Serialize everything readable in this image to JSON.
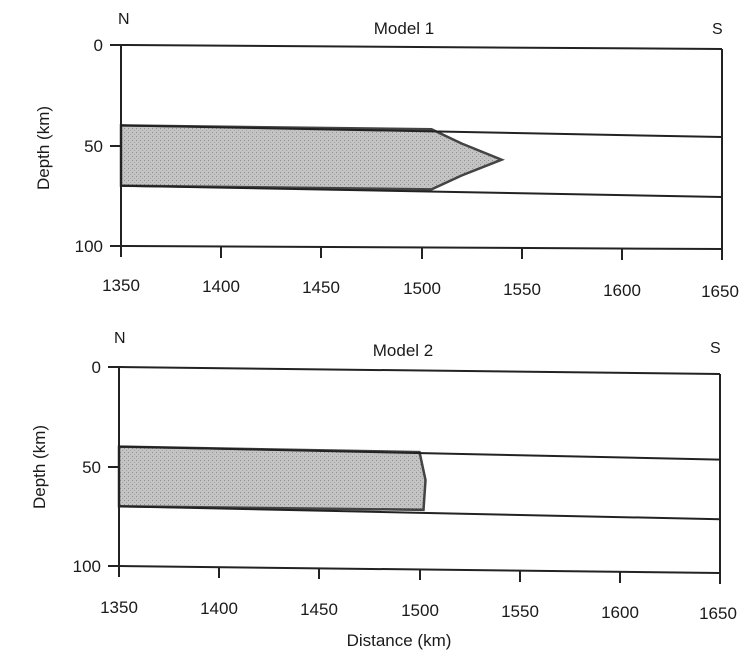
{
  "panels": [
    {
      "title": "Model 1",
      "left_label": "N",
      "right_label": "S",
      "ylabel": "Depth (km)",
      "xlabel": "",
      "x_ticks": [
        "1350",
        "1400",
        "1450",
        "1500",
        "1550",
        "1600",
        "1650"
      ],
      "y_ticks": [
        "0",
        "50",
        "100"
      ]
    },
    {
      "title": "Model 2",
      "left_label": "N",
      "right_label": "S",
      "ylabel": "Depth (km)",
      "xlabel": "Distance (km)",
      "x_ticks": [
        "1350",
        "1400",
        "1450",
        "1500",
        "1550",
        "1600",
        "1650"
      ],
      "y_ticks": [
        "0",
        "50",
        "100"
      ]
    }
  ],
  "models": [
    {
      "x_range_km": [
        1350,
        1650
      ],
      "depth_range_km": [
        0,
        100
      ],
      "upper_boundary_km": [
        [
          1350,
          40
        ],
        [
          1650,
          44
        ]
      ],
      "lower_boundary_km": [
        [
          1350,
          70
        ],
        [
          1650,
          74
        ]
      ],
      "shaded_body_km": [
        [
          1350,
          40
        ],
        [
          1505,
          41
        ],
        [
          1520,
          48
        ],
        [
          1540,
          56
        ],
        [
          1520,
          64
        ],
        [
          1505,
          71
        ],
        [
          1350,
          70
        ]
      ],
      "fill_color": "#bdbdbd"
    },
    {
      "x_range_km": [
        1350,
        1650
      ],
      "depth_range_km": [
        0,
        100
      ],
      "upper_boundary_km": [
        [
          1350,
          40
        ],
        [
          1650,
          43
        ]
      ],
      "lower_boundary_km": [
        [
          1350,
          70
        ],
        [
          1650,
          73
        ]
      ],
      "shaded_body_km": [
        [
          1350,
          40
        ],
        [
          1500,
          41
        ],
        [
          1503,
          55
        ],
        [
          1502,
          70
        ],
        [
          1350,
          70
        ]
      ],
      "fill_color": "#bdbdbd"
    }
  ]
}
